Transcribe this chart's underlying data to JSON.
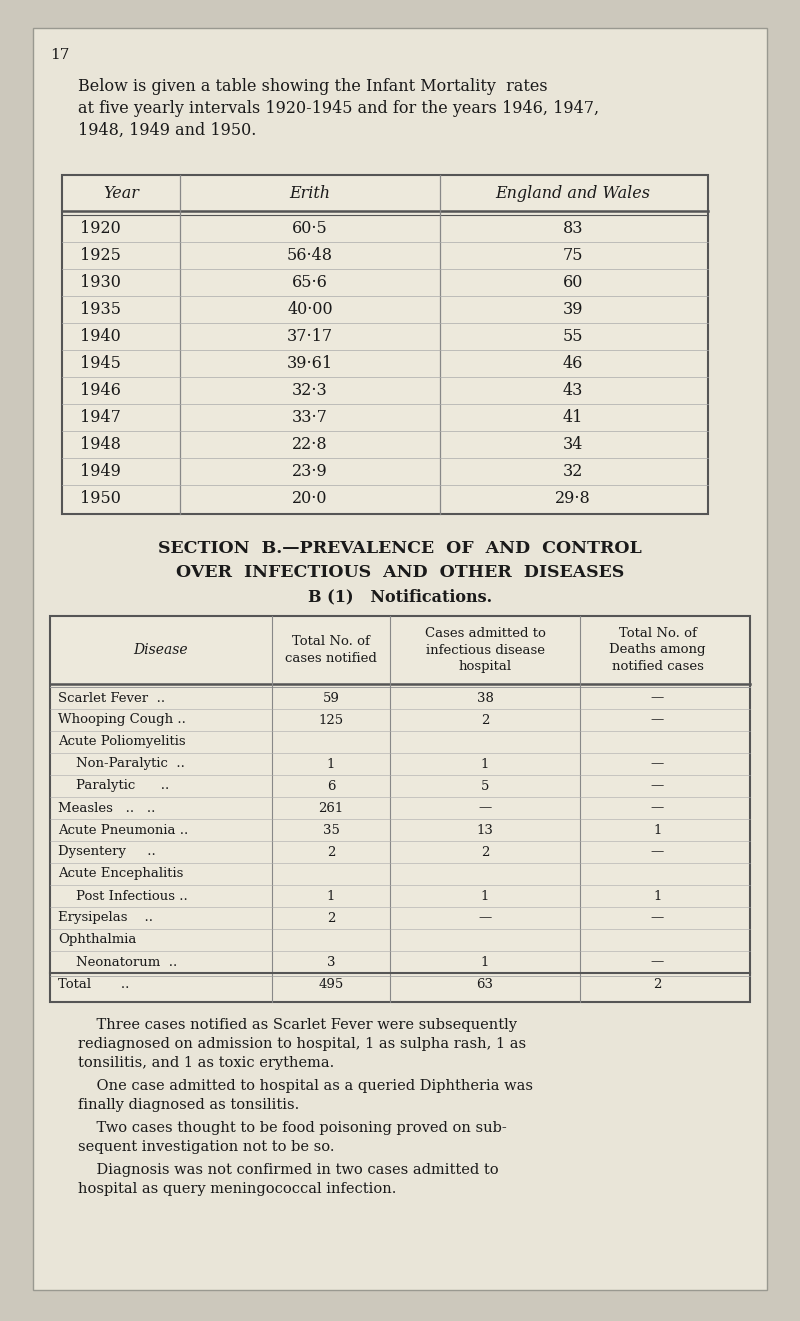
{
  "page_number": "17",
  "bg_color": "#e9e5d8",
  "page_bg": "#ccc8bc",
  "intro_text_lines": [
    "Below is given a table showing the Infant Mortality  rates",
    "at five yearly intervals 1920-1945 and for the years 1946, 1947,",
    "1948, 1949 and 1950."
  ],
  "table1_headers": [
    "Year",
    "Erith",
    "England and Wales"
  ],
  "table1_data": [
    [
      "1920",
      "60·5",
      "83"
    ],
    [
      "1925",
      "56·48",
      "75"
    ],
    [
      "1930",
      "65·6",
      "60"
    ],
    [
      "1935",
      "40·00",
      "39"
    ],
    [
      "1940",
      "37·17",
      "55"
    ],
    [
      "1945",
      "39·61",
      "46"
    ],
    [
      "1946",
      "32·3",
      "43"
    ],
    [
      "1947",
      "33·7",
      "41"
    ],
    [
      "1948",
      "22·8",
      "34"
    ],
    [
      "1949",
      "23·9",
      "32"
    ],
    [
      "1950",
      "20·0",
      "29·8"
    ]
  ],
  "section_heading1": "SECTION  B.—PREVALENCE  OF  AND  CONTROL",
  "section_heading2": "OVER  INFECTIOUS  AND  OTHER  DISEASES",
  "section_heading3": "B (1)   Notifications.",
  "table2_col_headers": [
    "Disease",
    "Total No. of\ncases notified",
    "Cases admitted to\ninfectious disease\nhospital",
    "Total No. of\nDeaths among\nnotified cases"
  ],
  "table2_data": [
    [
      "Scarlet Fever  ..",
      "59",
      "38",
      "—"
    ],
    [
      "Whooping Cough ..",
      "125",
      "2",
      "—"
    ],
    [
      "Acute Poliomyelitis",
      "",
      "",
      ""
    ],
    [
      "  Non-Paralytic  ..",
      "1",
      "1",
      "—"
    ],
    [
      "  Paralytic      ..",
      "6",
      "5",
      "—"
    ],
    [
      "Measles   ..   ..",
      "261",
      "—",
      "—"
    ],
    [
      "Acute Pneumonia ..",
      "35",
      "13",
      "1"
    ],
    [
      "Dysentery     ..",
      "2",
      "2",
      "—"
    ],
    [
      "Acute Encephalitis",
      "",
      "",
      ""
    ],
    [
      "  Post Infectious ..",
      "1",
      "1",
      "1"
    ],
    [
      "Erysipelas    ..",
      "2",
      "—",
      "—"
    ],
    [
      "Ophthalmia",
      "",
      "",
      ""
    ],
    [
      "  Neonatorum  ..",
      "3",
      "1",
      "—"
    ],
    [
      "Total       ..",
      "495",
      "63",
      "2"
    ]
  ],
  "footer_paragraphs": [
    [
      "    Three cases notified as Scarlet Fever were subsequently",
      "rediagnosed on admission to hospital, 1 as sulpha rash, 1 as",
      "tonsilitis, and 1 as toxic erythema."
    ],
    [
      "    One case admitted to hospital as a queried Diphtheria was",
      "finally diagnosed as tonsilitis."
    ],
    [
      "    Two cases thought to be food poisoning proved on sub-",
      "sequent investigation not to be so."
    ],
    [
      "    Diagnosis was not confirmed in two cases admitted to",
      "hospital as query meningococcal infection."
    ]
  ],
  "text_color": "#1a1a1a",
  "table_face": "#ede9dc",
  "table_edge": "#555555",
  "table_line_light": "#aaaaaa",
  "font_size_main": 11.5,
  "font_size_table2": 10.0,
  "font_size_footer": 10.5
}
